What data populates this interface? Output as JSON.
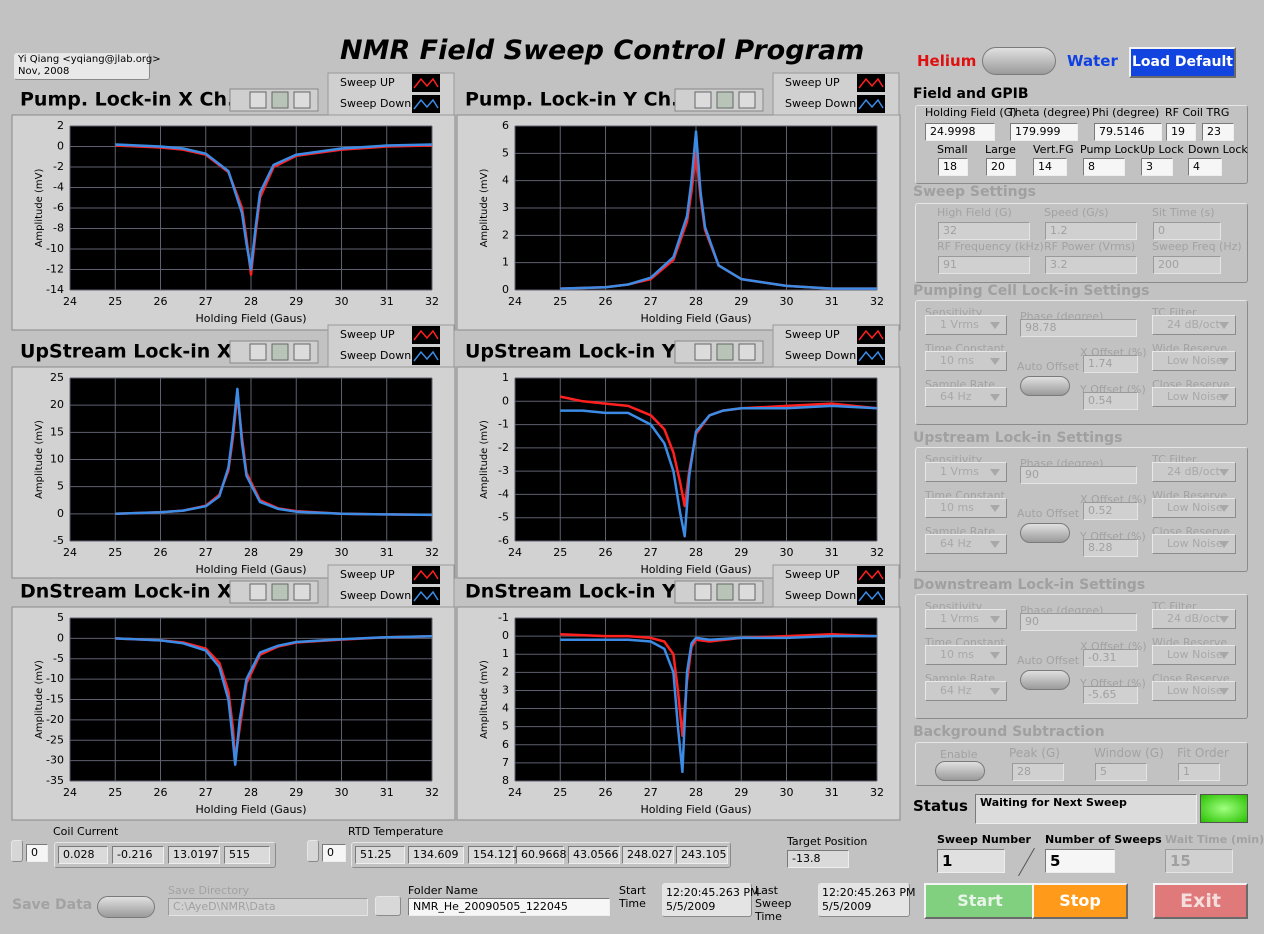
{
  "author": "Yi Qiang <yqiang@jlab.org>",
  "date": "Nov, 2008",
  "title": "NMR Field Sweep Control Program",
  "mode": {
    "left": "Helium",
    "right": "Water"
  },
  "load_default": "Load Default",
  "plots": [
    {
      "title": "Pump. Lock-in X Ch.",
      "x_label": "Holding Field (Gaus)",
      "y_label": "Amplitude (mV)",
      "xlim": [
        24,
        32
      ],
      "xticks": [
        24,
        25,
        26,
        27,
        28,
        29,
        30,
        31,
        32
      ],
      "ylim": [
        -14,
        2
      ],
      "yticks": [
        -14,
        -12,
        -10,
        -8,
        -6,
        -4,
        -2,
        0,
        2
      ],
      "x": [
        25,
        26,
        26.5,
        27,
        27.5,
        27.8,
        27.9,
        28,
        28.1,
        28.2,
        28.5,
        29,
        30,
        31,
        32
      ],
      "series": [
        {
          "name": "Sweep UP",
          "color": "#ff2020",
          "values": [
            0.1,
            -0.1,
            -0.3,
            -0.8,
            -2.5,
            -6,
            -9,
            -12.5,
            -8.5,
            -5,
            -2,
            -0.9,
            -0.3,
            0,
            0.1
          ]
        },
        {
          "name": "Sweep Down",
          "color": "#3c8ce6",
          "values": [
            0.2,
            0,
            -0.2,
            -0.7,
            -2.4,
            -6.5,
            -9.5,
            -12,
            -8,
            -4.5,
            -1.8,
            -0.8,
            -0.2,
            0.1,
            0.2
          ]
        }
      ]
    },
    {
      "title": "Pump. Lock-in Y Ch.",
      "x_label": "Holding Field (Gaus)",
      "y_label": "Amplitude (mV)",
      "xlim": [
        24,
        32
      ],
      "xticks": [
        24,
        25,
        26,
        27,
        28,
        29,
        30,
        31,
        32
      ],
      "ylim": [
        0,
        6
      ],
      "yticks": [
        0,
        1,
        2,
        3,
        4,
        5,
        6
      ],
      "x": [
        25,
        26,
        26.5,
        27,
        27.5,
        27.8,
        27.9,
        28,
        28.1,
        28.2,
        28.5,
        29,
        30,
        31,
        32
      ],
      "series": [
        {
          "name": "Sweep UP",
          "color": "#ff2020",
          "values": [
            0.05,
            0.1,
            0.2,
            0.4,
            1.1,
            2.5,
            3.6,
            5,
            3.4,
            2.2,
            0.9,
            0.4,
            0.15,
            0.05,
            0.05
          ]
        },
        {
          "name": "Sweep Down",
          "color": "#3c8ce6",
          "values": [
            0.05,
            0.1,
            0.2,
            0.45,
            1.2,
            2.7,
            4,
            5.8,
            3.6,
            2.3,
            0.9,
            0.4,
            0.15,
            0.05,
            0.05
          ]
        }
      ]
    },
    {
      "title": "UpStream Lock-in X",
      "x_label": "Holding Field (Gaus)",
      "y_label": "Amplitude (mV)",
      "xlim": [
        24,
        32
      ],
      "xticks": [
        24,
        25,
        26,
        27,
        28,
        29,
        30,
        31,
        32
      ],
      "ylim": [
        -5,
        25
      ],
      "yticks": [
        -5,
        0,
        5,
        10,
        15,
        20,
        25
      ],
      "x": [
        25,
        26,
        26.5,
        27,
        27.3,
        27.5,
        27.6,
        27.7,
        27.8,
        27.9,
        28.2,
        28.6,
        29,
        30,
        31,
        32
      ],
      "series": [
        {
          "name": "Sweep UP",
          "color": "#ff2020",
          "values": [
            0,
            0.3,
            0.6,
            1.5,
            3.5,
            8,
            14,
            22,
            14,
            7.5,
            2.5,
            1,
            0.5,
            0,
            -0.1,
            -0.2
          ]
        },
        {
          "name": "Sweep Down",
          "color": "#3c8ce6",
          "values": [
            0,
            0.3,
            0.6,
            1.4,
            3.2,
            8.5,
            15,
            23,
            13,
            7,
            2.2,
            0.9,
            0.4,
            0,
            -0.1,
            -0.2
          ]
        }
      ]
    },
    {
      "title": "UpStream Lock-in Y",
      "x_label": "Holding Field (Gaus)",
      "y_label": "Amplitude (mV)",
      "xlim": [
        24,
        32
      ],
      "xticks": [
        24,
        25,
        26,
        27,
        28,
        29,
        30,
        31,
        32
      ],
      "ylim": [
        -6,
        1
      ],
      "yticks": [
        -6,
        -5,
        -4,
        -3,
        -2,
        -1,
        0,
        1
      ],
      "x": [
        25,
        25.5,
        26,
        26.5,
        27,
        27.3,
        27.5,
        27.65,
        27.75,
        27.85,
        28,
        28.3,
        28.6,
        29,
        30,
        31,
        32
      ],
      "series": [
        {
          "name": "Sweep UP",
          "color": "#ff2020",
          "values": [
            0.2,
            0,
            -0.1,
            -0.2,
            -0.6,
            -1.2,
            -2.2,
            -3.5,
            -4.5,
            -3,
            -1.4,
            -0.6,
            -0.4,
            -0.3,
            -0.2,
            -0.1,
            -0.3
          ]
        },
        {
          "name": "Sweep Down",
          "color": "#3c8ce6",
          "values": [
            -0.4,
            -0.4,
            -0.5,
            -0.5,
            -1,
            -1.8,
            -3,
            -4.8,
            -5.8,
            -3.2,
            -1.3,
            -0.6,
            -0.4,
            -0.3,
            -0.3,
            -0.2,
            -0.3
          ]
        }
      ]
    },
    {
      "title": "DnStream Lock-in X",
      "x_label": "Holding Field (Gaus)",
      "y_label": "Amplitude (mV)",
      "xlim": [
        24,
        32
      ],
      "xticks": [
        24,
        25,
        26,
        27,
        28,
        29,
        30,
        31,
        32
      ],
      "ylim": [
        -35,
        5
      ],
      "yticks": [
        -35,
        -30,
        -25,
        -20,
        -15,
        -10,
        -5,
        0,
        5
      ],
      "x": [
        25,
        26,
        26.5,
        27,
        27.3,
        27.5,
        27.6,
        27.65,
        27.75,
        27.9,
        28.2,
        28.6,
        29,
        30,
        31,
        32
      ],
      "series": [
        {
          "name": "Sweep UP",
          "color": "#ff2020",
          "values": [
            0,
            -0.5,
            -1,
            -2.5,
            -6,
            -13,
            -22,
            -30,
            -22,
            -11,
            -4,
            -2,
            -1,
            -0.3,
            0.3,
            0.5
          ]
        },
        {
          "name": "Sweep Down",
          "color": "#3c8ce6",
          "values": [
            0,
            -0.5,
            -1.2,
            -3,
            -7,
            -15,
            -25,
            -31,
            -20,
            -10,
            -3.5,
            -1.8,
            -0.9,
            -0.2,
            0.3,
            0.5
          ]
        }
      ]
    },
    {
      "title": "DnStream Lock-in Y",
      "x_label": "Holding Field (Gaus)",
      "y_label": "Amplitude (mV)",
      "xlim": [
        24,
        32
      ],
      "xticks": [
        24,
        25,
        26,
        27,
        28,
        29,
        30,
        31,
        32
      ],
      "ylim": [
        8,
        -1
      ],
      "yticks": [
        -1,
        0,
        1,
        2,
        3,
        4,
        5,
        6,
        7,
        8
      ],
      "x": [
        25,
        26,
        26.5,
        27,
        27.3,
        27.5,
        27.6,
        27.7,
        27.8,
        27.9,
        28,
        28.3,
        29,
        30,
        31,
        32
      ],
      "series": [
        {
          "name": "Sweep UP",
          "color": "#ff2020",
          "values": [
            -0.1,
            0,
            0,
            0.1,
            0.3,
            1,
            3,
            5.5,
            2.5,
            0.6,
            0.2,
            0.3,
            0.1,
            0,
            -0.1,
            0
          ]
        },
        {
          "name": "Sweep Down",
          "color": "#3c8ce6",
          "values": [
            0.2,
            0.2,
            0.2,
            0.3,
            0.7,
            2,
            5,
            7.5,
            2,
            0.4,
            0.1,
            0.2,
            0.1,
            0.1,
            0,
            0
          ]
        }
      ]
    }
  ],
  "field_gpib": {
    "title": "Field and GPIB",
    "fields": [
      {
        "label": "Holding Field (G)",
        "value": 24.9998
      },
      {
        "label": "Theta (degree)",
        "value": 179.999
      },
      {
        "label": "Phi (degree)",
        "value": 79.5146
      },
      {
        "label": "RF Coil TRG",
        "values": [
          19,
          23
        ]
      },
      {
        "label": "Small",
        "value": 18
      },
      {
        "label": "Large",
        "value": 20
      },
      {
        "label": "Vert.FG",
        "value": 14
      },
      {
        "label": "Pump Lock",
        "value": 8
      },
      {
        "label": "Up Lock",
        "value": 3
      },
      {
        "label": "Down Lock",
        "value": 4
      }
    ]
  },
  "sweep_settings": {
    "title": "Sweep Settings",
    "fields": [
      {
        "label": "High Field (G)",
        "value": 32
      },
      {
        "label": "Speed (G/s)",
        "value": 1.2
      },
      {
        "label": "Sit Time (s)",
        "value": 0
      },
      {
        "label": "RF Frequency (kHz)",
        "value": 91
      },
      {
        "label": "RF Power (Vrms)",
        "value": 3.2
      },
      {
        "label": "Sweep Freq (Hz)",
        "value": 200
      }
    ]
  },
  "pumping_lockin": {
    "title": "Pumping Cell Lock-in Settings",
    "auto_offset": "Auto Offset",
    "fields": [
      {
        "label": "Sensitivity",
        "value": "1 Vrms"
      },
      {
        "label": "Phase (degree)",
        "value": 98.78
      },
      {
        "label": "TC Filter",
        "value": "24 dB/oct"
      },
      {
        "label": "Time Constant",
        "value": "10 ms"
      },
      {
        "label": "X Offset (%)",
        "value": 1.74
      },
      {
        "label": "Wide Reserve",
        "value": "Low Noise"
      },
      {
        "label": "Sample Rate",
        "value": "64 Hz"
      },
      {
        "label": "Y Offset (%)",
        "value": 0.54
      },
      {
        "label": "Close Reserve",
        "value": "Low Noise"
      }
    ]
  },
  "upstream_lockin": {
    "title": "Upstream Lock-in Settings",
    "auto_offset": "Auto Offset",
    "fields": [
      {
        "label": "Sensitivity",
        "value": "1 Vrms"
      },
      {
        "label": "Phase (degree)",
        "value": 90
      },
      {
        "label": "TC Filter",
        "value": "24 dB/oct"
      },
      {
        "label": "Time Constant",
        "value": "10 ms"
      },
      {
        "label": "X Offset (%)",
        "value": 0.52
      },
      {
        "label": "Wide Reserve",
        "value": "Low Noise"
      },
      {
        "label": "Sample Rate",
        "value": "64 Hz"
      },
      {
        "label": "Y Offset (%)",
        "value": 8.28
      },
      {
        "label": "Close Reserve",
        "value": "Low Noise"
      }
    ]
  },
  "downstream_lockin": {
    "title": "Downstream Lock-in Settings",
    "auto_offset": "Auto Offset",
    "fields": [
      {
        "label": "Sensitivity",
        "value": "1 Vrms"
      },
      {
        "label": "Phase (degree)",
        "value": 90
      },
      {
        "label": "TC Filter",
        "value": "24 dB/oct"
      },
      {
        "label": "Time Constant",
        "value": "10 ms"
      },
      {
        "label": "X Offset (%)",
        "value": -0.31
      },
      {
        "label": "Wide Reserve",
        "value": "Low Noise"
      },
      {
        "label": "Sample Rate",
        "value": "64 Hz"
      },
      {
        "label": "Y Offset (%)",
        "value": -5.65
      },
      {
        "label": "Close Reserve",
        "value": "Low Noise"
      }
    ]
  },
  "background": {
    "title": "Background Subtraction",
    "enable": "Enable",
    "fields": [
      {
        "label": "Peak (G)",
        "value": 28
      },
      {
        "label": "Window (G)",
        "value": 5
      },
      {
        "label": "Fit Order",
        "value": 1
      }
    ]
  },
  "status": {
    "label": "Status",
    "value": "Waiting for Next Sweep"
  },
  "sweep_number": {
    "label": "Sweep Number",
    "value": 1
  },
  "number_of_sweeps": {
    "label": "Number of Sweeps",
    "value": 5
  },
  "wait_time": {
    "label": "Wait Time (min)",
    "value": 15
  },
  "buttons": {
    "start": "Start",
    "stop": "Stop",
    "exit": "Exit"
  },
  "coil_current": {
    "label": "Coil Current",
    "index": 0,
    "values": [
      0.028,
      -0.216,
      13.0197,
      515
    ]
  },
  "rtd_temperature": {
    "label": "RTD Temperature",
    "index": 0,
    "values": [
      51.25,
      134.609,
      154.121,
      60.9668,
      43.0566,
      248.027,
      243.105
    ]
  },
  "target_position": {
    "label": "Target Position",
    "value": -13.8
  },
  "save_data": "Save Data",
  "save_directory": {
    "label": "Save Directory",
    "value": "C:\\AyeD\\NMR\\Data"
  },
  "folder_name": {
    "label": "Folder Name",
    "value": "NMR_He_20090505_122045"
  },
  "start_time": {
    "label": "Start Time",
    "time": "12:20:45.263 PM",
    "date": "5/5/2009"
  },
  "last_sweep_time": {
    "label": "Last Sweep Time",
    "time": "12:20:45.263 PM",
    "date": "5/5/2009"
  }
}
